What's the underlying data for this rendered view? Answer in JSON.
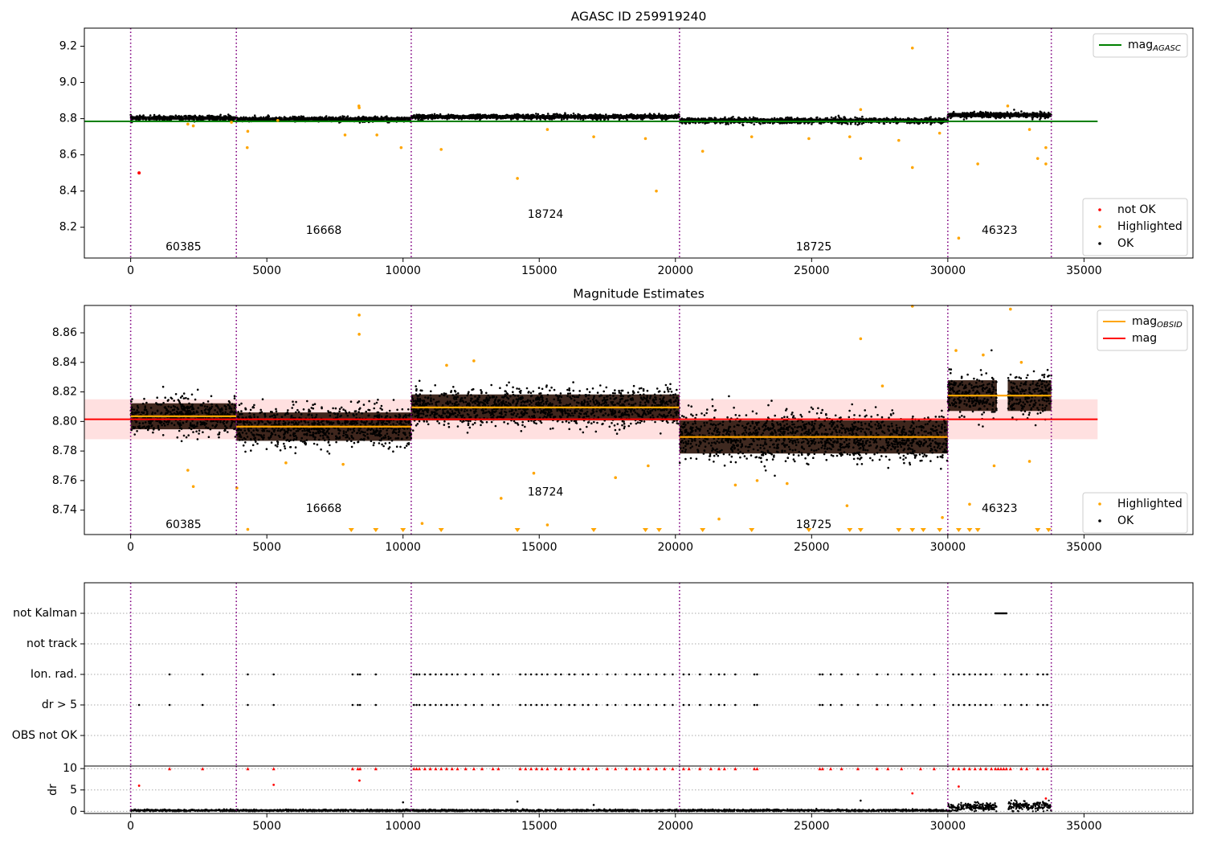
{
  "chart_data": [
    {
      "type": "scatter",
      "title": "AGASC ID 259919240",
      "xlim": [
        -1700,
        39000
      ],
      "ylim": [
        8.03,
        9.3
      ],
      "xticks": [
        0,
        5000,
        10000,
        15000,
        20000,
        25000,
        30000,
        35000
      ],
      "yticks": [
        8.2,
        8.4,
        8.6,
        8.8,
        9.0,
        9.2
      ],
      "ytick_labels": [
        "8.2",
        "8.4",
        "8.6",
        "8.8",
        "9.0",
        "9.2"
      ],
      "obs_boundaries": [
        0,
        3880,
        10300,
        20150,
        30000,
        33800
      ],
      "obsid_labels": [
        {
          "text": "60385",
          "x": 1940,
          "y": 8.09
        },
        {
          "text": "16668",
          "x": 7090,
          "y": 8.18
        },
        {
          "text": "18724",
          "x": 15230,
          "y": 8.27
        },
        {
          "text": "18725",
          "x": 25080,
          "y": 8.09
        },
        {
          "text": "46323",
          "x": 31900,
          "y": 8.18
        }
      ],
      "mag_agasc": 8.785,
      "mag_agasc_range": [
        -1700,
        35500
      ],
      "legend_top": [
        {
          "label": "mag",
          "sub": "AGASC",
          "color": "#008000"
        }
      ],
      "legend_bottom": [
        {
          "label": "not OK",
          "color": "#ff0000"
        },
        {
          "label": "Highlighted",
          "color": "#ffa500"
        },
        {
          "label": "OK",
          "color": "#000000"
        }
      ],
      "segments": [
        {
          "x0": 0,
          "x1": 3880,
          "mean": 8.803,
          "spread": 0.012
        },
        {
          "x0": 3880,
          "x1": 10300,
          "mean": 8.797,
          "spread": 0.012
        },
        {
          "x0": 10300,
          "x1": 20150,
          "mean": 8.81,
          "spread": 0.012
        },
        {
          "x0": 20150,
          "x1": 30000,
          "mean": 8.789,
          "spread": 0.014
        },
        {
          "x0": 30000,
          "x1": 33800,
          "mean": 8.82,
          "spread": 0.014
        }
      ],
      "not_ok_points": [
        {
          "x": 310,
          "y": 8.5
        }
      ],
      "highlighted_points": [
        {
          "x": 8380,
          "y": 8.87
        },
        {
          "x": 8390,
          "y": 8.86
        },
        {
          "x": 4300,
          "y": 8.73
        },
        {
          "x": 4280,
          "y": 8.64
        },
        {
          "x": 7870,
          "y": 8.71
        },
        {
          "x": 9040,
          "y": 8.71
        },
        {
          "x": 9930,
          "y": 8.64
        },
        {
          "x": 11400,
          "y": 8.63
        },
        {
          "x": 14200,
          "y": 8.47
        },
        {
          "x": 17000,
          "y": 8.7
        },
        {
          "x": 18900,
          "y": 8.69
        },
        {
          "x": 19300,
          "y": 8.4
        },
        {
          "x": 21000,
          "y": 8.62
        },
        {
          "x": 22800,
          "y": 8.7
        },
        {
          "x": 24900,
          "y": 8.69
        },
        {
          "x": 26400,
          "y": 8.7
        },
        {
          "x": 26800,
          "y": 8.58
        },
        {
          "x": 26800,
          "y": 8.85
        },
        {
          "x": 28200,
          "y": 8.68
        },
        {
          "x": 28700,
          "y": 8.53
        },
        {
          "x": 28700,
          "y": 9.19
        },
        {
          "x": 29700,
          "y": 8.72
        },
        {
          "x": 30400,
          "y": 8.14
        },
        {
          "x": 31100,
          "y": 8.55
        },
        {
          "x": 32200,
          "y": 8.87
        },
        {
          "x": 33300,
          "y": 8.58
        },
        {
          "x": 33600,
          "y": 8.64
        },
        {
          "x": 33600,
          "y": 8.55
        },
        {
          "x": 33000,
          "y": 8.74
        },
        {
          "x": 2100,
          "y": 8.77
        },
        {
          "x": 2300,
          "y": 8.76
        },
        {
          "x": 15300,
          "y": 8.74
        },
        {
          "x": 3700,
          "y": 8.78
        },
        {
          "x": 5400,
          "y": 8.79
        }
      ]
    },
    {
      "type": "scatter",
      "title": "Magnitude Estimates",
      "xlim": [
        -1700,
        39000
      ],
      "ylim": [
        8.7235,
        8.8785
      ],
      "xticks": [
        0,
        5000,
        10000,
        15000,
        20000,
        25000,
        30000,
        35000
      ],
      "yticks": [
        8.74,
        8.76,
        8.78,
        8.8,
        8.82,
        8.84,
        8.86
      ],
      "ytick_labels": [
        "8.74",
        "8.76",
        "8.78",
        "8.80",
        "8.82",
        "8.84",
        "8.86"
      ],
      "obs_boundaries": [
        0,
        3880,
        10300,
        20150,
        30000,
        33800
      ],
      "obsid_labels": [
        {
          "text": "60385",
          "x": 1940,
          "y": 8.73
        },
        {
          "text": "16668",
          "x": 7090,
          "y": 8.741
        },
        {
          "text": "18724",
          "x": 15230,
          "y": 8.752
        },
        {
          "text": "18725",
          "x": 25080,
          "y": 8.73
        },
        {
          "text": "46323",
          "x": 31900,
          "y": 8.741
        }
      ],
      "mag": 8.8015,
      "mag_band": [
        8.788,
        8.815
      ],
      "mag_range": [
        -1700,
        35500
      ],
      "legend_top": [
        {
          "label": "mag",
          "sub": "OBSID",
          "color": "#ffa500"
        },
        {
          "label": "mag",
          "sub": "",
          "color": "#ff0000"
        }
      ],
      "legend_bottom": [
        {
          "label": "Highlighted",
          "color": "#ffa500"
        },
        {
          "label": "OK",
          "color": "#000000"
        }
      ],
      "segments": [
        {
          "x0": 0,
          "x1": 3880,
          "mean": 8.8035,
          "spread": 0.011
        },
        {
          "x0": 3880,
          "x1": 10300,
          "mean": 8.7965,
          "spread": 0.012
        },
        {
          "x0": 10300,
          "x1": 20150,
          "mean": 8.8095,
          "spread": 0.011
        },
        {
          "x0": 20150,
          "x1": 30000,
          "mean": 8.7895,
          "spread": 0.014
        },
        {
          "x0": 30000,
          "x1": 31800,
          "mean": 8.8175,
          "spread": 0.013
        },
        {
          "x0": 32200,
          "x1": 33800,
          "mean": 8.8175,
          "spread": 0.013
        }
      ],
      "obsid_means": [
        {
          "x0": 0,
          "x1": 3880,
          "y": 8.8035
        },
        {
          "x0": 3880,
          "x1": 10300,
          "y": 8.7965
        },
        {
          "x0": 10300,
          "x1": 20150,
          "y": 8.8095
        },
        {
          "x0": 20150,
          "x1": 30000,
          "y": 8.7895
        },
        {
          "x0": 30000,
          "x1": 33800,
          "y": 8.8175
        }
      ],
      "highlighted_points": [
        {
          "x": 8390,
          "y": 8.872
        },
        {
          "x": 8390,
          "y": 8.859
        },
        {
          "x": 26800,
          "y": 8.856
        },
        {
          "x": 28700,
          "y": 8.878
        },
        {
          "x": 32300,
          "y": 8.876
        },
        {
          "x": 11600,
          "y": 8.838
        },
        {
          "x": 12600,
          "y": 8.841
        },
        {
          "x": 3900,
          "y": 8.755
        },
        {
          "x": 2300,
          "y": 8.756
        },
        {
          "x": 2100,
          "y": 8.767
        },
        {
          "x": 13600,
          "y": 8.748
        },
        {
          "x": 15300,
          "y": 8.73
        },
        {
          "x": 14800,
          "y": 8.765
        },
        {
          "x": 19000,
          "y": 8.77
        },
        {
          "x": 17800,
          "y": 8.762
        },
        {
          "x": 21600,
          "y": 8.734
        },
        {
          "x": 22200,
          "y": 8.757
        },
        {
          "x": 26300,
          "y": 8.743
        },
        {
          "x": 29800,
          "y": 8.735
        },
        {
          "x": 30800,
          "y": 8.744
        },
        {
          "x": 31700,
          "y": 8.77
        },
        {
          "x": 33000,
          "y": 8.773
        },
        {
          "x": 10700,
          "y": 8.731
        },
        {
          "x": 4300,
          "y": 8.727
        },
        {
          "x": 5700,
          "y": 8.772
        },
        {
          "x": 7800,
          "y": 8.771
        },
        {
          "x": 23000,
          "y": 8.76
        },
        {
          "x": 24100,
          "y": 8.758
        },
        {
          "x": 32700,
          "y": 8.84
        },
        {
          "x": 31300,
          "y": 8.845
        },
        {
          "x": 30300,
          "y": 8.848
        },
        {
          "x": 27600,
          "y": 8.824
        }
      ],
      "below_range_x": [
        8100,
        9000,
        10000,
        11400,
        14200,
        17000,
        18900,
        19400,
        21000,
        22800,
        24900,
        26400,
        26800,
        28200,
        28700,
        29100,
        29700,
        30400,
        30800,
        31100,
        33300,
        33700
      ]
    },
    {
      "type": "scatter",
      "xlim": [
        -1700,
        39000
      ],
      "ylim": [
        0,
        6
      ],
      "xticks": [],
      "ytick_labels": [
        "OBS not OK",
        "dr > 5",
        "Ion. rad.",
        "not track",
        "not Kalman"
      ],
      "obs_boundaries": [
        0,
        3880,
        10300,
        20150,
        30000,
        33800
      ],
      "flags": {
        "dr > 5": [
          310,
          1430,
          2640,
          4300,
          5250,
          8150,
          8340,
          8420,
          9000,
          10400,
          10500,
          10600,
          10800,
          11000,
          11200,
          11400,
          11600,
          11800,
          12000,
          12300,
          12600,
          12900,
          13300,
          13500,
          14300,
          14500,
          14700,
          14900,
          15100,
          15300,
          15600,
          15800,
          16100,
          16300,
          16600,
          16800,
          17100,
          17500,
          17800,
          18200,
          18500,
          18700,
          19000,
          19300,
          19600,
          19900,
          20300,
          20500,
          20900,
          21300,
          21600,
          21800,
          22200,
          22900,
          23000,
          25300,
          25400,
          25700,
          26100,
          26700,
          27400,
          27800,
          28300,
          28700,
          29000,
          29500,
          30200,
          30400,
          30600,
          30800,
          31000,
          31200,
          31400,
          31600,
          32100,
          32300,
          32700,
          32900,
          33300,
          33500,
          33650
        ],
        "Ion. rad.": [
          1430,
          2640,
          4300,
          5250,
          8150,
          8340,
          8420,
          9000,
          10400,
          10500,
          10600,
          10800,
          11000,
          11200,
          11400,
          11600,
          11800,
          12000,
          12300,
          12600,
          12900,
          13300,
          13500,
          14300,
          14500,
          14700,
          14900,
          15100,
          15300,
          15600,
          15800,
          16100,
          16300,
          16600,
          16800,
          17100,
          17500,
          17800,
          18200,
          18500,
          18700,
          19000,
          19300,
          19600,
          19900,
          20300,
          20500,
          20900,
          21300,
          21600,
          21800,
          22200,
          22900,
          23000,
          25300,
          25400,
          25700,
          26100,
          26700,
          27400,
          27800,
          28300,
          28700,
          29000,
          29500,
          30200,
          30400,
          30600,
          30800,
          31000,
          31200,
          31400,
          31600,
          32100,
          32300,
          32700,
          32900,
          33300,
          33500,
          33650
        ],
        "not Kalman": [
          31750,
          31800,
          31850,
          31900,
          31950,
          32000,
          32050,
          32100,
          32150
        ]
      }
    },
    {
      "type": "scatter",
      "ylabel": "dr",
      "xlim": [
        -1700,
        39000
      ],
      "ylim": [
        -0.5,
        10.6
      ],
      "xticks": [
        0,
        5000,
        10000,
        15000,
        20000,
        25000,
        30000,
        35000
      ],
      "yticks": [
        0,
        5,
        10
      ],
      "ytick_labels": [
        "0",
        "5",
        "10"
      ],
      "obs_boundaries": [
        0,
        3880,
        10300,
        20150,
        30000,
        33800
      ],
      "capped_value": 10,
      "capped_x": [
        1430,
        2640,
        4300,
        5250,
        8150,
        8340,
        8420,
        9000,
        10400,
        10500,
        10600,
        10800,
        11000,
        11200,
        11400,
        11600,
        11800,
        12000,
        12300,
        12600,
        12900,
        13300,
        13500,
        14300,
        14500,
        14700,
        14900,
        15100,
        15300,
        15600,
        15800,
        16100,
        16300,
        16600,
        16800,
        17100,
        17500,
        17800,
        18200,
        18500,
        18700,
        19000,
        19300,
        19600,
        19900,
        20300,
        20500,
        20900,
        21300,
        21600,
        21800,
        22200,
        22900,
        23000,
        25300,
        25400,
        25700,
        26100,
        26700,
        27400,
        27800,
        28300,
        29000,
        29500,
        30200,
        30400,
        30600,
        30800,
        31000,
        31200,
        31400,
        31600,
        31750,
        31850,
        31950,
        32050,
        32150,
        32300,
        32700,
        32900,
        33300,
        33500,
        33650
      ],
      "other_red_points": [
        {
          "x": 310,
          "y": 6
        },
        {
          "x": 5250,
          "y": 6.2
        },
        {
          "x": 8400,
          "y": 7.2
        },
        {
          "x": 28700,
          "y": 4.2
        },
        {
          "x": 30400,
          "y": 5.8
        },
        {
          "x": 33600,
          "y": 3.0
        }
      ],
      "outlier_points": [
        {
          "x": 10000,
          "y": 2.1
        },
        {
          "x": 14200,
          "y": 2.3
        },
        {
          "x": 26800,
          "y": 2.5
        },
        {
          "x": 17000,
          "y": 1.5
        }
      ],
      "baseline_segments": [
        {
          "x0": 0,
          "x1": 30000,
          "level": 0.2
        },
        {
          "x0": 30000,
          "x1": 31800,
          "level": 0.9
        },
        {
          "x0": 32200,
          "x1": 33800,
          "level": 1.2
        }
      ]
    }
  ]
}
